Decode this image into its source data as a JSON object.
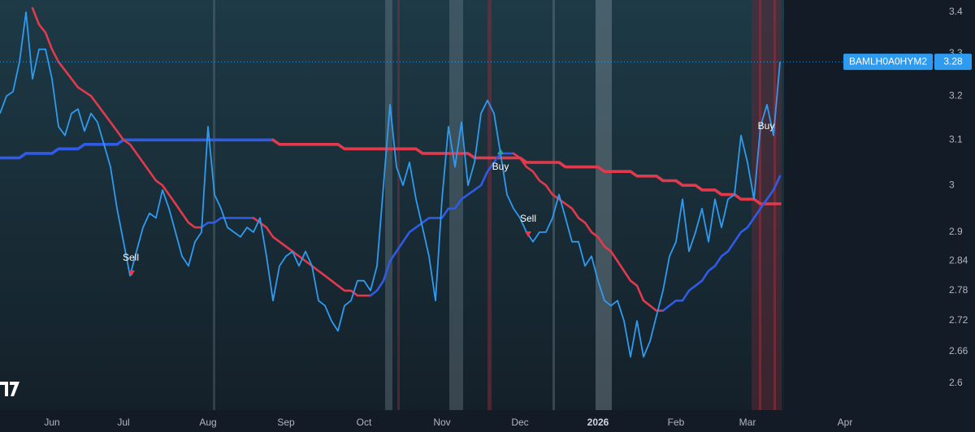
{
  "chart_data": {
    "type": "line",
    "log_scale": true,
    "grid": false,
    "categories": [
      null,
      null,
      null,
      null,
      null,
      null,
      null,
      null,
      "Jun",
      null,
      null,
      null,
      null,
      null,
      null,
      null,
      null,
      null,
      null,
      "Jul",
      null,
      null,
      null,
      null,
      null,
      null,
      null,
      null,
      null,
      null,
      null,
      null,
      "Aug",
      null,
      null,
      null,
      null,
      null,
      null,
      null,
      null,
      null,
      null,
      null,
      "Sep",
      null,
      null,
      null,
      null,
      null,
      null,
      null,
      null,
      null,
      null,
      null,
      "Oct",
      null,
      null,
      null,
      null,
      null,
      null,
      null,
      null,
      null,
      null,
      null,
      "Nov",
      null,
      null,
      null,
      null,
      null,
      null,
      null,
      null,
      null,
      null,
      null,
      "Dec",
      null,
      null,
      null,
      null,
      null,
      null,
      null,
      null,
      null,
      null,
      null,
      "2026",
      null,
      null,
      null,
      null,
      null,
      null,
      null,
      null,
      null,
      null,
      null,
      "Feb",
      null,
      null,
      null,
      null,
      null,
      null,
      null,
      null,
      null,
      null,
      "Mar",
      null,
      null,
      null,
      null,
      null,
      null,
      null,
      null,
      null,
      null,
      null,
      null,
      null,
      null,
      "Apr"
    ],
    "series": [
      {
        "name": "BAMLH0A0HYM2",
        "color": "#2f9bf0",
        "values": [
          3.16,
          3.2,
          3.21,
          3.28,
          3.4,
          3.24,
          3.31,
          3.31,
          3.24,
          3.13,
          3.11,
          3.16,
          3.17,
          3.12,
          3.16,
          3.14,
          3.09,
          3.04,
          2.95,
          2.88,
          2.81,
          2.86,
          2.91,
          2.94,
          2.93,
          2.99,
          2.95,
          2.9,
          2.85,
          2.83,
          2.88,
          2.9,
          3.13,
          2.98,
          2.95,
          2.91,
          2.9,
          2.89,
          2.91,
          2.9,
          2.93,
          2.85,
          2.76,
          2.83,
          2.85,
          2.86,
          2.83,
          2.86,
          2.83,
          2.76,
          2.75,
          2.72,
          2.7,
          2.75,
          2.76,
          2.8,
          2.8,
          2.78,
          2.83,
          3.0,
          3.18,
          3.04,
          3.0,
          3.05,
          2.97,
          2.91,
          2.85,
          2.76,
          2.97,
          3.13,
          3.04,
          3.14,
          3.0,
          3.05,
          3.16,
          3.19,
          3.16,
          3.07,
          2.98,
          2.95,
          2.93,
          2.9,
          2.88,
          2.9,
          2.9,
          2.93,
          2.98,
          2.93,
          2.88,
          2.88,
          2.83,
          2.85,
          2.8,
          2.76,
          2.75,
          2.76,
          2.72,
          2.65,
          2.72,
          2.65,
          2.68,
          2.73,
          2.78,
          2.85,
          2.88,
          2.97,
          2.86,
          2.9,
          2.95,
          2.88,
          2.97,
          2.91,
          2.97,
          2.98,
          3.11,
          3.05,
          2.97,
          3.13,
          3.18,
          3.11,
          3.28,
          null,
          null,
          null,
          null,
          null,
          null,
          null,
          null,
          null,
          null
        ]
      },
      {
        "up_color": "#2f5be6",
        "down_color": "#e23a4d",
        "values": [
          null,
          null,
          null,
          null,
          null,
          3.41,
          3.37,
          3.35,
          3.31,
          3.28,
          3.26,
          3.24,
          3.22,
          3.21,
          3.2,
          3.18,
          3.16,
          3.14,
          3.12,
          3.1,
          3.09,
          3.07,
          3.05,
          3.03,
          3.01,
          3.0,
          2.98,
          2.96,
          2.94,
          2.92,
          2.91,
          2.91,
          2.92,
          2.92,
          2.93,
          2.93,
          2.93,
          2.93,
          2.93,
          2.93,
          2.92,
          2.91,
          2.89,
          2.88,
          2.87,
          2.86,
          2.85,
          2.84,
          2.83,
          2.82,
          2.81,
          2.8,
          2.79,
          2.78,
          2.78,
          2.77,
          2.77,
          2.77,
          2.78,
          2.8,
          2.84,
          2.86,
          2.88,
          2.9,
          2.91,
          2.92,
          2.93,
          2.93,
          2.93,
          2.95,
          2.95,
          2.97,
          2.98,
          2.99,
          3.0,
          3.03,
          3.05,
          3.07,
          3.07,
          3.07,
          3.06,
          3.04,
          3.03,
          3.01,
          3.0,
          2.98,
          2.97,
          2.96,
          2.95,
          2.93,
          2.92,
          2.9,
          2.89,
          2.87,
          2.86,
          2.84,
          2.82,
          2.8,
          2.79,
          2.76,
          2.75,
          2.74,
          2.74,
          2.75,
          2.76,
          2.76,
          2.78,
          2.79,
          2.8,
          2.82,
          2.83,
          2.85,
          2.86,
          2.88,
          2.9,
          2.91,
          2.93,
          2.95,
          2.97,
          2.99,
          3.02,
          null,
          null,
          null,
          null,
          null,
          null,
          null,
          null,
          null,
          null
        ]
      },
      {
        "up_color": "#2f5be6",
        "down_color": "#e23a4d",
        "values": [
          3.06,
          3.06,
          3.06,
          3.06,
          3.07,
          3.07,
          3.07,
          3.07,
          3.07,
          3.08,
          3.08,
          3.08,
          3.08,
          3.09,
          3.09,
          3.09,
          3.09,
          3.09,
          3.09,
          3.1,
          3.1,
          3.1,
          3.1,
          3.1,
          3.1,
          3.1,
          3.1,
          3.1,
          3.1,
          3.1,
          3.1,
          3.1,
          3.1,
          3.1,
          3.1,
          3.1,
          3.1,
          3.1,
          3.1,
          3.1,
          3.1,
          3.1,
          3.1,
          3.09,
          3.09,
          3.09,
          3.09,
          3.09,
          3.09,
          3.09,
          3.09,
          3.09,
          3.09,
          3.08,
          3.08,
          3.08,
          3.08,
          3.08,
          3.08,
          3.08,
          3.08,
          3.08,
          3.08,
          3.08,
          3.08,
          3.07,
          3.07,
          3.07,
          3.07,
          3.07,
          3.07,
          3.07,
          3.07,
          3.06,
          3.06,
          3.06,
          3.06,
          3.06,
          3.06,
          3.06,
          3.06,
          3.05,
          3.05,
          3.05,
          3.05,
          3.05,
          3.05,
          3.04,
          3.04,
          3.04,
          3.04,
          3.04,
          3.04,
          3.03,
          3.03,
          3.03,
          3.03,
          3.03,
          3.02,
          3.02,
          3.02,
          3.02,
          3.01,
          3.01,
          3.01,
          3.0,
          3.0,
          3.0,
          2.99,
          2.99,
          2.99,
          2.98,
          2.98,
          2.98,
          2.97,
          2.97,
          2.97,
          2.96,
          2.96,
          2.96,
          2.96,
          null,
          null,
          null,
          null,
          null,
          null,
          null,
          null,
          null,
          null
        ]
      }
    ],
    "ylim": [
      2.55,
      3.43
    ],
    "yticks": [
      2.6,
      2.66,
      2.72,
      2.78,
      2.84,
      2.9,
      3,
      3.1,
      3.2,
      3.3,
      3.4
    ],
    "annotations": [
      "Sell",
      "Buy",
      "Sell",
      "Buy"
    ]
  }
}
